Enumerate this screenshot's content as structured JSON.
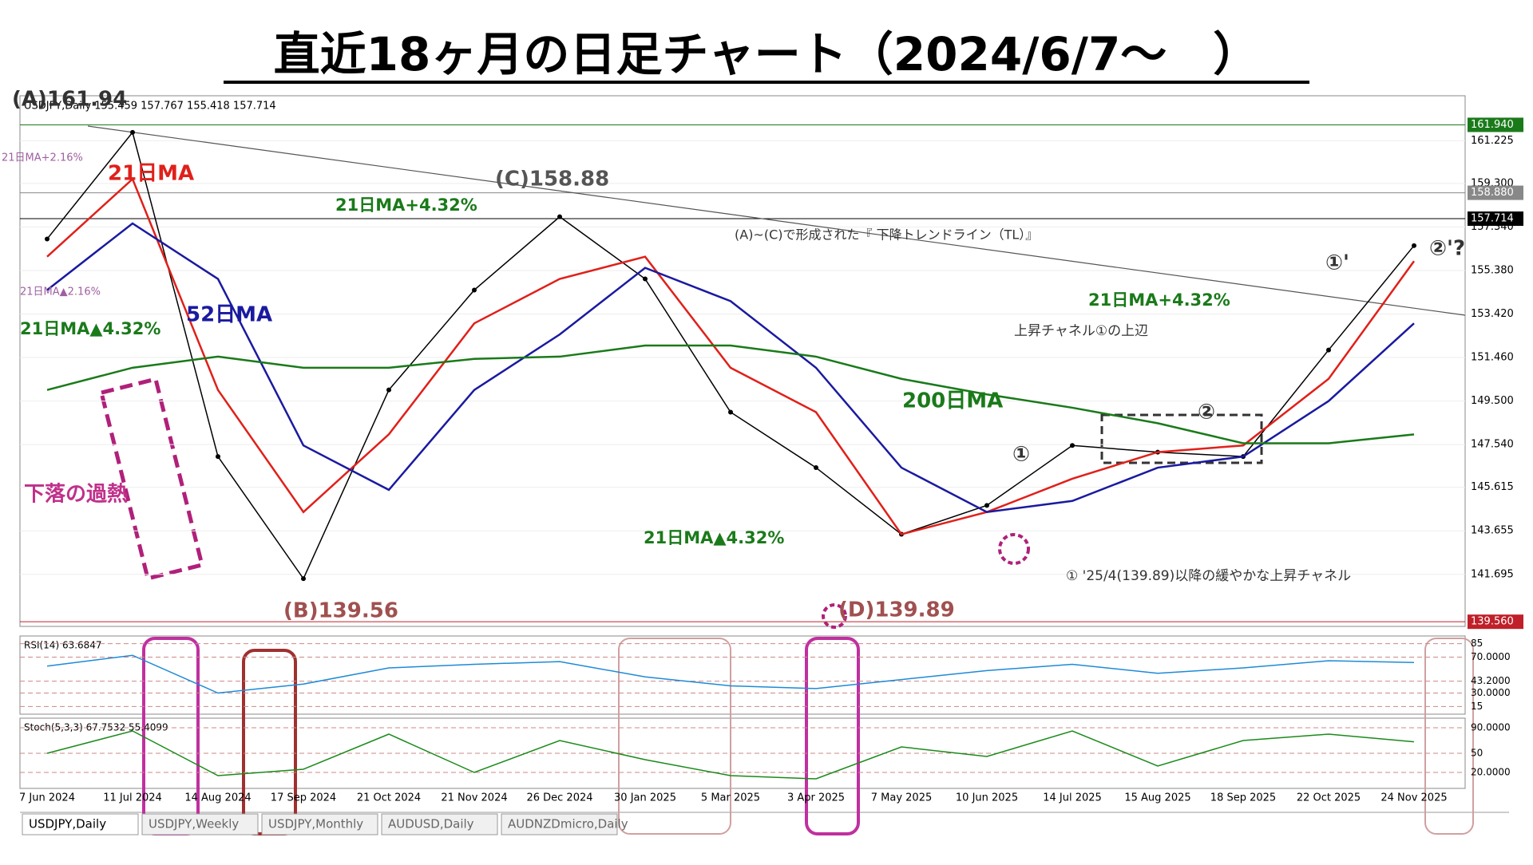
{
  "chart_data": {
    "type": "line",
    "title": "直近18ヶ月の日足チャート（2024/6/7～　）",
    "info": "USDJPY,Daily 155.459 157.767 155.418 157.714",
    "categories": [
      "7 Jun 2024",
      "11 Jul 2024",
      "14 Aug 2024",
      "17 Sep 2024",
      "21 Oct 2024",
      "21 Nov 2024",
      "26 Dec 2024",
      "30 Jan 2025",
      "5 Mar 2025",
      "3 Apr 2025",
      "7 May 2025",
      "10 Jun 2025",
      "14 Jul 2025",
      "15 Aug 2025",
      "18 Sep 2025",
      "22 Oct 2025",
      "24 Nov 2025"
    ],
    "series": [
      {
        "name": "USDJPY",
        "color": "#000000",
        "values": [
          156.8,
          161.6,
          147.0,
          141.5,
          150.0,
          154.5,
          157.8,
          155.0,
          149.0,
          146.5,
          143.5,
          144.8,
          147.5,
          147.2,
          147.0,
          151.8,
          156.5
        ]
      },
      {
        "name": "21日MA",
        "color": "#e0201a",
        "values": [
          156.0,
          159.5,
          150.0,
          144.5,
          148.0,
          153.0,
          155.0,
          156.0,
          151.0,
          149.0,
          143.5,
          144.5,
          146.0,
          147.2,
          147.5,
          150.5,
          155.8
        ]
      },
      {
        "name": "52日MA",
        "color": "#1a1aa0",
        "values": [
          154.5,
          157.5,
          155.0,
          147.5,
          145.5,
          150.0,
          152.5,
          155.5,
          154.0,
          151.0,
          146.5,
          144.5,
          145.0,
          146.5,
          147.0,
          149.5,
          153.0
        ]
      },
      {
        "name": "200日MA",
        "color": "#1a7a1a",
        "values": [
          150.0,
          151.0,
          151.5,
          151.0,
          151.0,
          151.4,
          151.5,
          152.0,
          152.0,
          151.5,
          150.5,
          149.8,
          149.2,
          148.5,
          147.6,
          147.6,
          148.0
        ]
      }
    ],
    "ylim": [
      139.35,
      163.25
    ],
    "yticks": [
      161.225,
      {
        "value": 159.3,
        "label": "159.300"
      },
      {
        "value": 157.34,
        "label": "157.340"
      },
      {
        "value": 155.38,
        "label": "155.380"
      },
      {
        "value": 153.42,
        "label": "153.420"
      },
      {
        "value": 151.46,
        "label": "151.460"
      },
      {
        "value": 149.5,
        "label": "149.500"
      },
      {
        "value": 147.54,
        "label": "147.540"
      },
      145.615,
      143.655,
      141.695
    ],
    "price_labels": [
      {
        "value": 161.94,
        "label": "161.940",
        "color": "#1a7a1a"
      },
      {
        "value": 158.88,
        "label": "158.880",
        "color": "#888888"
      },
      {
        "value": 157.714,
        "label": "157.714",
        "color": "#000000"
      },
      {
        "value": 139.56,
        "label": "139.560",
        "color": "#c0202a"
      }
    ],
    "annotations": [
      "(A)161.94",
      "21日MA",
      "(C)158.88",
      "21日MA+4.32%",
      "52日MA",
      "21日MA▲4.32%",
      "下落の過熱",
      "(B)139.56",
      "(D)139.89",
      "200日MA",
      "21日MA+4.32%",
      "上昇チャネル①の上辺",
      "21日MA▲4.32%",
      "① '25/4(139.89)以降の緩やかな上昇チャネル",
      "(A)~(C)で形成された『 下降トレンドライン（TL）』",
      "①",
      "②",
      "①'",
      "②'?",
      "21日MA+2.16%",
      "21日MA▲2.16%"
    ],
    "rsi": {
      "label": "RSI(14) 63.6847",
      "color": "#1e8ad6",
      "ylim": [
        10,
        90
      ],
      "yticks": [
        85,
        {
          "value": 70,
          "label": "70.0000"
        },
        {
          "value": 43.2,
          "label": "43.2000"
        },
        {
          "value": 30,
          "label": "30.0000"
        },
        15
      ],
      "values": [
        60,
        72,
        30,
        40,
        58,
        62,
        65,
        48,
        38,
        35,
        45,
        55,
        62,
        52,
        58,
        66,
        64
      ]
    },
    "stoch": {
      "label": "Stoch(5,3,3) 67.7532 55.4099",
      "color": "#1a8a1a",
      "ylim": [
        0,
        100
      ],
      "yticks": [
        {
          "value": 90,
          "label": "90.0000"
        },
        50,
        {
          "value": 20,
          "label": "20.0000"
        }
      ],
      "values": [
        50,
        85,
        15,
        25,
        80,
        20,
        70,
        40,
        15,
        10,
        60,
        45,
        85,
        30,
        70,
        80,
        68
      ]
    },
    "tabs": [
      "USDJPY,Daily",
      "USDJPY,Weekly",
      "USDJPY,Monthly",
      "AUDUSD,Daily",
      "AUDNZDmicro,Daily"
    ]
  }
}
